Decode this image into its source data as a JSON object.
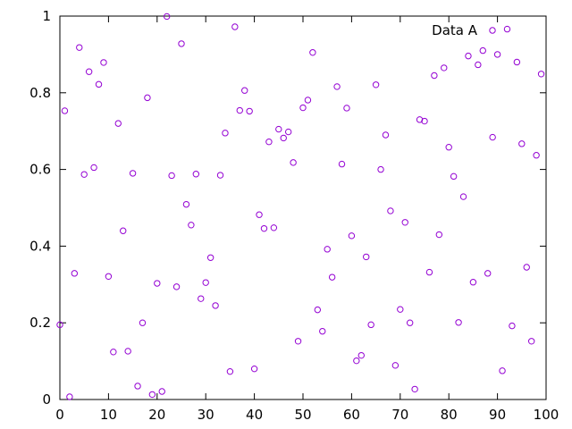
{
  "chart_data": {
    "type": "scatter",
    "title": "",
    "xlabel": "",
    "ylabel": "",
    "xlim": [
      0,
      100
    ],
    "ylim": [
      0,
      1
    ],
    "grid": false,
    "legend_position": "top-right",
    "x_ticks": [
      "0",
      "10",
      "20",
      "30",
      "40",
      "50",
      "60",
      "70",
      "80",
      "90",
      "100"
    ],
    "y_ticks": [
      "0",
      "0.2",
      "0.4",
      "0.6",
      "0.8",
      "1"
    ],
    "marker": "open-circle",
    "series": [
      {
        "name": "Data A",
        "color": "#9400d3",
        "points": [
          [
            0,
            0.195
          ],
          [
            1,
            0.753
          ],
          [
            2,
            0.007
          ],
          [
            3,
            0.329
          ],
          [
            4,
            0.918
          ],
          [
            5,
            0.587
          ],
          [
            6,
            0.855
          ],
          [
            7,
            0.605
          ],
          [
            8,
            0.822
          ],
          [
            9,
            0.879
          ],
          [
            10,
            0.321
          ],
          [
            11,
            0.124
          ],
          [
            12,
            0.72
          ],
          [
            13,
            0.44
          ],
          [
            14,
            0.126
          ],
          [
            15,
            0.59
          ],
          [
            16,
            0.035
          ],
          [
            17,
            0.2
          ],
          [
            18,
            0.787
          ],
          [
            19,
            0.013
          ],
          [
            20,
            0.303
          ],
          [
            21,
            0.021
          ],
          [
            22,
            0.999
          ],
          [
            23,
            0.584
          ],
          [
            24,
            0.294
          ],
          [
            25,
            0.928
          ],
          [
            26,
            0.509
          ],
          [
            27,
            0.455
          ],
          [
            28,
            0.588
          ],
          [
            29,
            0.263
          ],
          [
            30,
            0.305
          ],
          [
            31,
            0.37
          ],
          [
            32,
            0.245
          ],
          [
            33,
            0.585
          ],
          [
            34,
            0.695
          ],
          [
            35,
            0.073
          ],
          [
            36,
            0.972
          ],
          [
            37,
            0.754
          ],
          [
            38,
            0.806
          ],
          [
            39,
            0.752
          ],
          [
            40,
            0.08
          ],
          [
            41,
            0.482
          ],
          [
            42,
            0.446
          ],
          [
            43,
            0.672
          ],
          [
            44,
            0.448
          ],
          [
            45,
            0.705
          ],
          [
            46,
            0.682
          ],
          [
            47,
            0.698
          ],
          [
            48,
            0.618
          ],
          [
            49,
            0.152
          ],
          [
            50,
            0.761
          ],
          [
            51,
            0.781
          ],
          [
            52,
            0.905
          ],
          [
            53,
            0.234
          ],
          [
            54,
            0.178
          ],
          [
            55,
            0.392
          ],
          [
            56,
            0.319
          ],
          [
            57,
            0.816
          ],
          [
            58,
            0.614
          ],
          [
            59,
            0.76
          ],
          [
            60,
            0.427
          ],
          [
            61,
            0.101
          ],
          [
            62,
            0.115
          ],
          [
            63,
            0.372
          ],
          [
            64,
            0.195
          ],
          [
            65,
            0.821
          ],
          [
            66,
            0.6
          ],
          [
            67,
            0.69
          ],
          [
            68,
            0.492
          ],
          [
            69,
            0.089
          ],
          [
            70,
            0.235
          ],
          [
            71,
            0.462
          ],
          [
            72,
            0.2
          ],
          [
            73,
            0.027
          ],
          [
            74,
            0.73
          ],
          [
            75,
            0.726
          ],
          [
            76,
            0.332
          ],
          [
            77,
            0.845
          ],
          [
            78,
            0.43
          ],
          [
            79,
            0.865
          ],
          [
            80,
            0.658
          ],
          [
            81,
            0.582
          ],
          [
            82,
            0.201
          ],
          [
            83,
            0.529
          ],
          [
            84,
            0.896
          ],
          [
            85,
            0.306
          ],
          [
            86,
            0.873
          ],
          [
            87,
            0.91
          ],
          [
            88,
            0.329
          ],
          [
            89,
            0.684
          ],
          [
            90,
            0.9
          ],
          [
            91,
            0.075
          ],
          [
            92,
            0.966
          ],
          [
            93,
            0.192
          ],
          [
            94,
            0.88
          ],
          [
            95,
            0.667
          ],
          [
            96,
            0.345
          ],
          [
            97,
            0.152
          ],
          [
            98,
            0.637
          ],
          [
            99,
            0.849
          ]
        ]
      }
    ]
  }
}
